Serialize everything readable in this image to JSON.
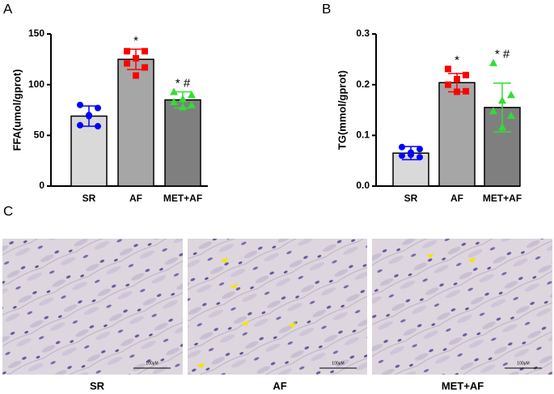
{
  "chart_data": [
    {
      "type": "bar",
      "panel_label": "A",
      "y_label": "FFA(umol/gprot)",
      "categories": [
        "SR",
        "AF",
        "MET+AF"
      ],
      "values": [
        69,
        125,
        85
      ],
      "errors": [
        10,
        10,
        8
      ],
      "bar_colors": [
        "#d9d9d9",
        "#a6a6a6",
        "#7f7f7f"
      ],
      "point_colors": [
        "#0000ff",
        "#ff0000",
        "#33dd33"
      ],
      "markers": [
        "circle",
        "square",
        "triangle"
      ],
      "points": [
        [
          80,
          77,
          69,
          60,
          59,
          70
        ],
        [
          133,
          133,
          126,
          121,
          117,
          109
        ],
        [
          93,
          90,
          86,
          83,
          80,
          78
        ]
      ],
      "annotations": [
        null,
        "*",
        "* #"
      ],
      "ylim": [
        0,
        150
      ],
      "yticks": [
        0,
        50,
        100,
        150
      ]
    },
    {
      "type": "bar",
      "panel_label": "B",
      "y_label": "TG(mmol/gprot)",
      "categories": [
        "SR",
        "AF",
        "MET+AF"
      ],
      "values": [
        0.065,
        0.204,
        0.155
      ],
      "errors": [
        0.013,
        0.018,
        0.048
      ],
      "bar_colors": [
        "#d9d9d9",
        "#a6a6a6",
        "#7f7f7f"
      ],
      "point_colors": [
        "#0000ff",
        "#ff0000",
        "#33dd33"
      ],
      "markers": [
        "circle",
        "square",
        "triangle"
      ],
      "points": [
        [
          0.077,
          0.073,
          0.066,
          0.06,
          0.057,
          0.062
        ],
        [
          0.231,
          0.219,
          0.211,
          0.2,
          0.187,
          0.186
        ],
        [
          0.243,
          0.18,
          0.169,
          0.148,
          0.139,
          0.116
        ]
      ],
      "annotations": [
        null,
        "*",
        "* #"
      ],
      "ylim": [
        0,
        0.3
      ],
      "yticks": [
        {
          "value": 0,
          "label": "0.0"
        },
        0.1,
        0.2,
        0.3
      ]
    }
  ],
  "histology": {
    "panel_label": "C",
    "labels": [
      "SR",
      "AF",
      "MET+AF"
    ],
    "scale_bar": "100μM"
  }
}
